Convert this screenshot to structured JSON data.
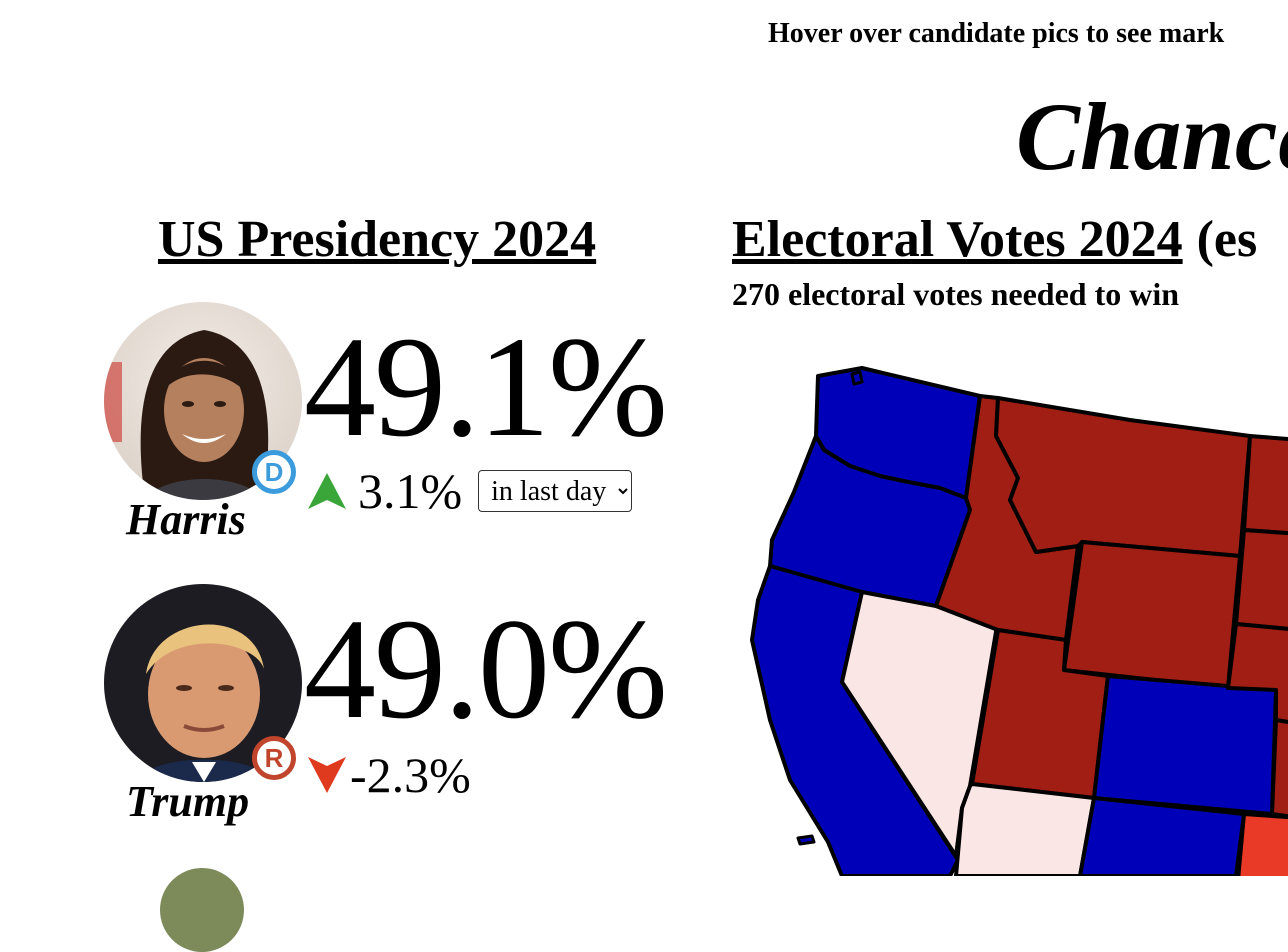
{
  "page": {
    "hint": "Hover over candidate pics to see mark",
    "title": "Chance"
  },
  "presidency": {
    "title": "US Presidency 2024",
    "candidates": [
      {
        "name": "Harris",
        "party": "D",
        "party_color": "#3b9bdc",
        "percent": "49.1%",
        "change": "3.1%",
        "change_direction": "up",
        "change_icon": "up-arrow-icon",
        "change_color": "#3aa63a",
        "period_selected": "in last day"
      },
      {
        "name": "Trump",
        "party": "R",
        "party_color": "#c0452c",
        "percent": "49.0%",
        "change": "-2.3%",
        "change_direction": "down",
        "change_icon": "down-arrow-icon",
        "change_color": "#e03a1e"
      }
    ]
  },
  "electoral": {
    "title": "Electoral Votes 2024",
    "title_suffix": "(es",
    "needed": "270 electoral votes needed to win",
    "colors": {
      "safe_dem": "#0000b8",
      "safe_rep": "#a01e14",
      "lean_rep": "#e83a26",
      "tossup": "#fbe6e6"
    }
  }
}
